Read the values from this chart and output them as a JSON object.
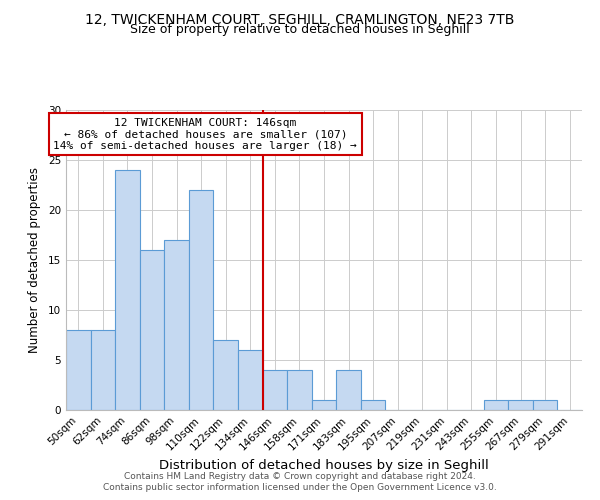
{
  "title1": "12, TWICKENHAM COURT, SEGHILL, CRAMLINGTON, NE23 7TB",
  "title2": "Size of property relative to detached houses in Seghill",
  "xlabel": "Distribution of detached houses by size in Seghill",
  "ylabel": "Number of detached properties",
  "bin_labels": [
    "50sqm",
    "62sqm",
    "74sqm",
    "86sqm",
    "98sqm",
    "110sqm",
    "122sqm",
    "134sqm",
    "146sqm",
    "158sqm",
    "171sqm",
    "183sqm",
    "195sqm",
    "207sqm",
    "219sqm",
    "231sqm",
    "243sqm",
    "255sqm",
    "267sqm",
    "279sqm",
    "291sqm"
  ],
  "bar_values": [
    8,
    8,
    24,
    16,
    17,
    22,
    7,
    6,
    4,
    4,
    1,
    4,
    1,
    0,
    0,
    0,
    0,
    1,
    1,
    1,
    0
  ],
  "bar_color": "#c5d9f1",
  "bar_edge_color": "#5b9bd5",
  "marker_line_index": 8,
  "annotation_title": "12 TWICKENHAM COURT: 146sqm",
  "annotation_line1": "← 86% of detached houses are smaller (107)",
  "annotation_line2": "14% of semi-detached houses are larger (18) →",
  "annotation_box_edge": "#cc0000",
  "annotation_box_fill": "#ffffff",
  "ylim": [
    0,
    30
  ],
  "yticks": [
    0,
    5,
    10,
    15,
    20,
    25,
    30
  ],
  "footer1": "Contains HM Land Registry data © Crown copyright and database right 2024.",
  "footer2": "Contains public sector information licensed under the Open Government Licence v3.0.",
  "bg_color": "#ffffff",
  "grid_color": "#cccccc",
  "title1_fontsize": 10,
  "title2_fontsize": 9,
  "xlabel_fontsize": 9.5,
  "ylabel_fontsize": 8.5,
  "tick_fontsize": 7.5,
  "footer_fontsize": 6.5,
  "annotation_fontsize": 8
}
